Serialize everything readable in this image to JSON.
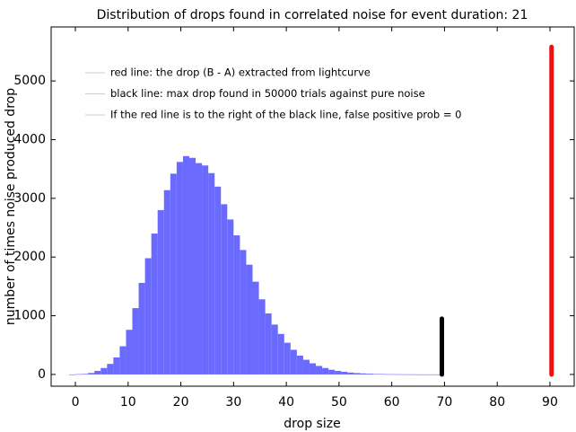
{
  "chart_data": {
    "type": "histogram",
    "title": "Distribution of drops found in correlated noise for event duration: 21",
    "x_label": "drop size",
    "y_label": "number of times noise produced drop",
    "color": "#6a6aff",
    "bins": [
      -1.2,
      0,
      1.2,
      2.4,
      3.6,
      4.8,
      6,
      7.2,
      8.4,
      9.6,
      10.8,
      12,
      13.2,
      14.4,
      15.6,
      16.8,
      18,
      19.2,
      20.4,
      21.6,
      22.8,
      24,
      25.2,
      26.4,
      27.6,
      28.8,
      30,
      31.2,
      32.4,
      33.6,
      34.8,
      36,
      37.2,
      38.4,
      39.6,
      40.8,
      42,
      43.2,
      44.4,
      45.6,
      46.8,
      48,
      49.2,
      50.4,
      51.6,
      52.8,
      54,
      55.2,
      56.4,
      57.6,
      58.8,
      60,
      61.2,
      62.4,
      63.6,
      64.8,
      66,
      67.2,
      68.4,
      69.6
    ],
    "values": [
      0,
      5,
      10,
      25,
      60,
      110,
      180,
      290,
      480,
      760,
      1130,
      1560,
      1980,
      2400,
      2800,
      3140,
      3420,
      3620,
      3720,
      3690,
      3600,
      3560,
      3430,
      3200,
      2900,
      2640,
      2370,
      2120,
      1870,
      1580,
      1280,
      1040,
      850,
      690,
      540,
      420,
      320,
      250,
      190,
      145,
      110,
      80,
      60,
      45,
      32,
      24,
      18,
      13,
      9,
      7,
      5,
      4,
      3,
      2,
      2,
      1,
      1,
      1,
      1
    ],
    "lines": [
      {
        "name": "red line: the drop (B - A) extracted from lightcurve",
        "color": "#ee1111",
        "x": 90.3,
        "y": [
          0,
          5580
        ]
      },
      {
        "name": "black line: max drop found in 50000 trials against pure noise",
        "color": "#000000",
        "x": 69.5,
        "y": [
          0,
          950
        ]
      }
    ],
    "legend_note": "If the red line is to the right of the black line, false positive prob = 0",
    "xlim": [
      -4.6,
      94.6
    ],
    "ylim": [
      -200,
      5920
    ],
    "xticks": [
      0,
      10,
      20,
      30,
      40,
      50,
      60,
      70,
      80,
      90
    ],
    "yticks": [
      0,
      1000,
      2000,
      3000,
      4000,
      5000
    ]
  }
}
